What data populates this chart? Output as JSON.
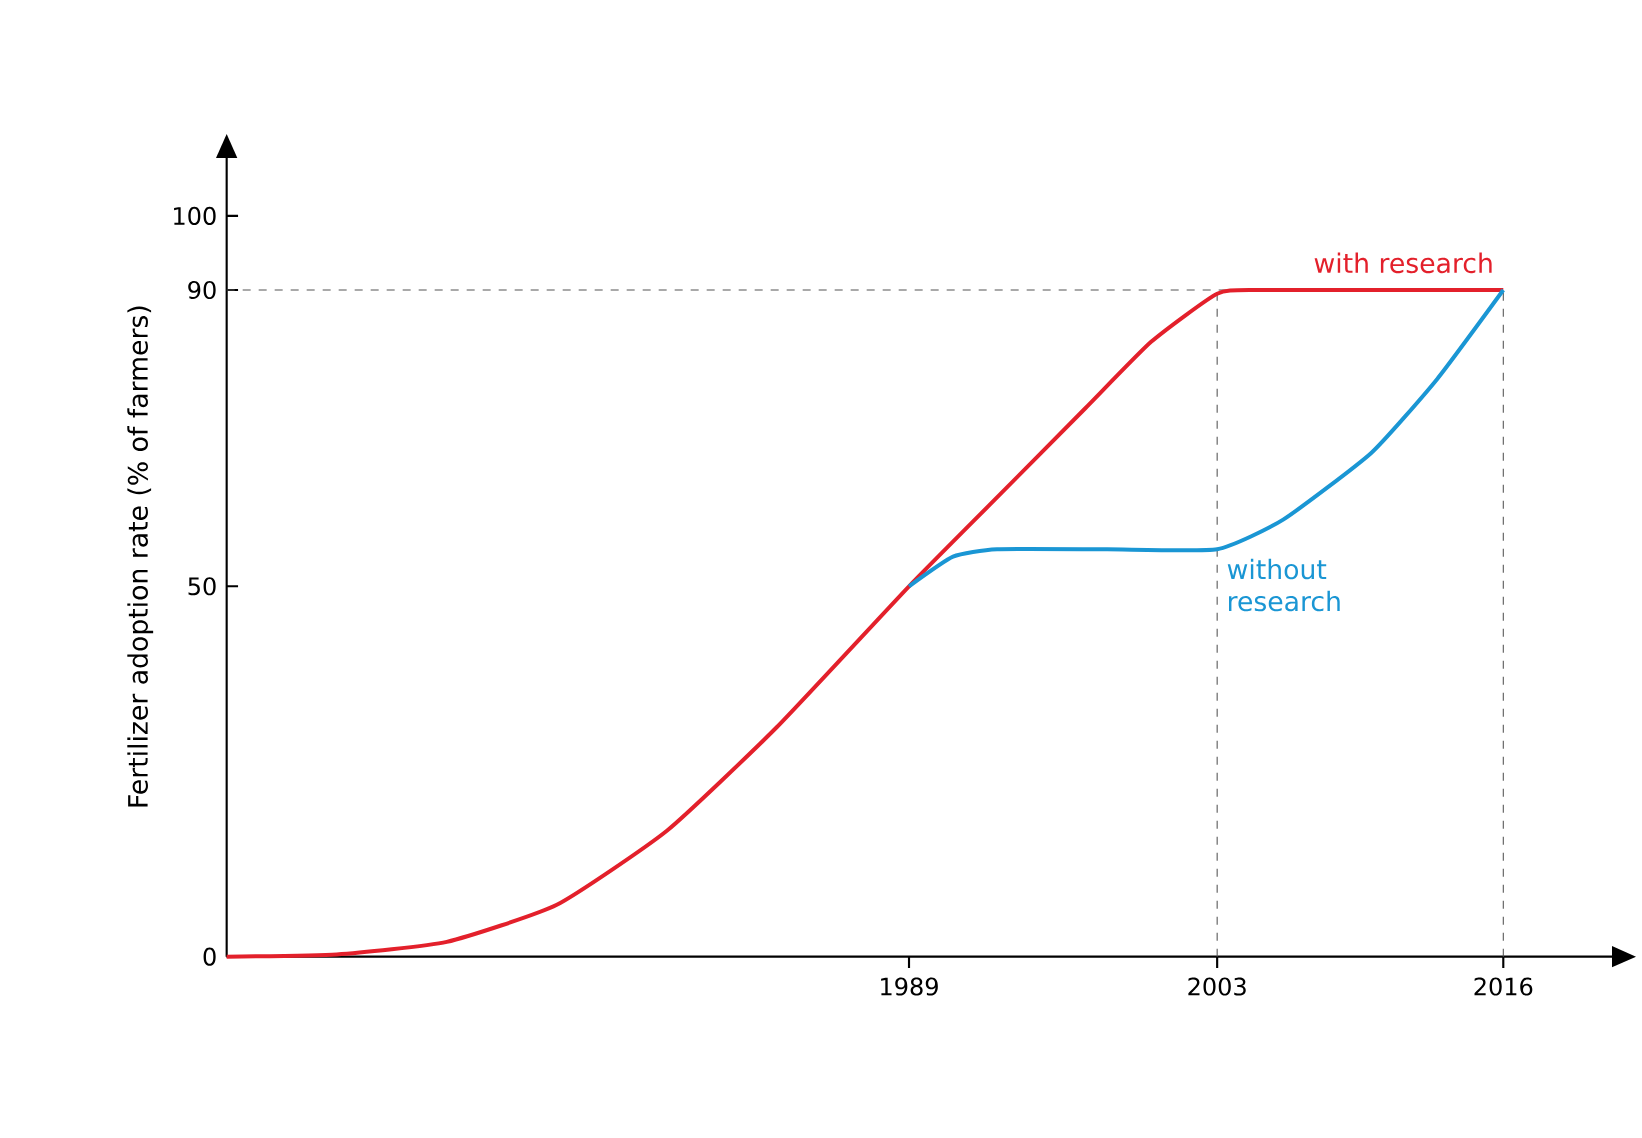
{
  "chart_data": {
    "type": "line",
    "ylabel": "Fertilizer adoption rate (% of farmers)",
    "xlim": [
      1958,
      2021
    ],
    "ylim": [
      0,
      108
    ],
    "xticks": [
      1989,
      2003,
      2016
    ],
    "yticks": [
      0,
      50,
      90,
      100
    ],
    "ref_lines": [
      {
        "axis": "y",
        "value": 90,
        "color": "#555555",
        "line_style": "dashed"
      },
      {
        "axis": "x",
        "value": 2003,
        "color": "#555555",
        "line_style": "dashed"
      },
      {
        "axis": "x",
        "value": 2016,
        "color": "#555555",
        "line_style": "dashed"
      }
    ],
    "series": [
      {
        "name": "with research",
        "color": "#e3202b",
        "x": [
          1958,
          1963,
          1968,
          1973,
          1978,
          1983,
          1989,
          1993,
          1997,
          2000,
          2003,
          2005,
          2016
        ],
        "values": [
          0,
          0.3,
          2,
          7,
          17,
          31,
          50,
          62,
          74,
          83,
          89.5,
          90,
          90
        ]
      },
      {
        "name": "without research",
        "color": "#1a96d4",
        "x": [
          1989,
          1991,
          1993,
          1998,
          2003,
          2006,
          2010,
          2013,
          2016
        ],
        "values": [
          50,
          54,
          55,
          55,
          55,
          59,
          68,
          78,
          90
        ]
      }
    ],
    "grid": false,
    "marker": "none",
    "line_style": "solid"
  }
}
